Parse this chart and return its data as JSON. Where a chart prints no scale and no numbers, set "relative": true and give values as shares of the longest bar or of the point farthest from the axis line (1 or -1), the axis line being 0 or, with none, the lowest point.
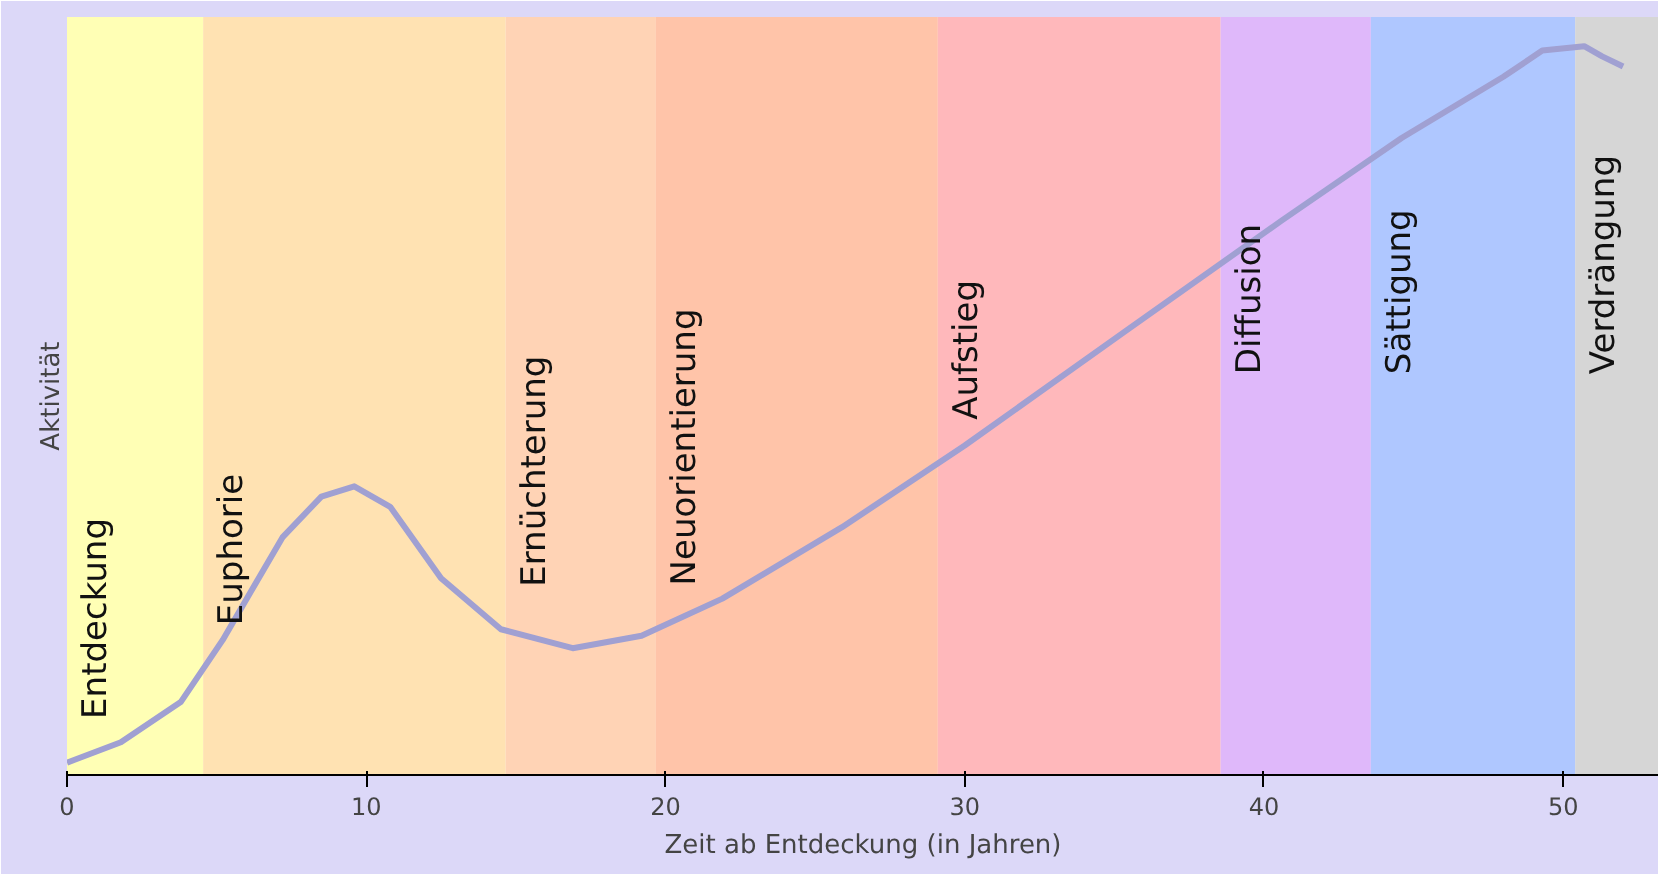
{
  "chart_data": {
    "type": "line",
    "xlabel": "Zeit ab Entdeckung (in Jahren)",
    "ylabel": "Aktivität",
    "relative": true,
    "grid": false,
    "xlim": [
      0,
      53.2
    ],
    "xticks": [
      0,
      10,
      20,
      30,
      40,
      50
    ],
    "x": [
      0,
      1.8,
      3.8,
      5.2,
      7.2,
      8.5,
      9.6,
      10.8,
      12.5,
      14.5,
      16.9,
      19.2,
      21.9,
      25.9,
      30.0,
      35.3,
      40.6,
      44.6,
      48.0,
      49.3,
      50.7,
      51.3,
      52.0
    ],
    "series": [
      {
        "color": "#a0a0d2",
        "values": [
          0.017,
          0.045,
          0.1,
          0.185,
          0.326,
          0.382,
          0.396,
          0.368,
          0.27,
          0.2,
          0.174,
          0.191,
          0.242,
          0.34,
          0.452,
          0.607,
          0.761,
          0.874,
          0.958,
          0.994,
          1.0,
          0.986,
          0.972
        ]
      }
    ],
    "bands": [
      {
        "axis": "x",
        "from": 0,
        "to": 4.55,
        "label": "Entdeckung",
        "color": "#ffff9c"
      },
      {
        "axis": "x",
        "from": 4.55,
        "to": 14.66,
        "label": "Euphorie",
        "color": "#ffd898"
      },
      {
        "axis": "x",
        "from": 14.66,
        "to": 19.68,
        "label": "Ernüchterung",
        "color": "#ffc49c"
      },
      {
        "axis": "x",
        "from": 19.68,
        "to": 29.1,
        "label": "Neuorientierung",
        "color": "#ffb08c"
      },
      {
        "axis": "x",
        "from": 29.1,
        "to": 38.55,
        "label": "Aufstieg",
        "color": "#ffa0a4"
      },
      {
        "axis": "x",
        "from": 38.55,
        "to": 43.57,
        "label": "Diffusion",
        "color": "#d4a0f8"
      },
      {
        "axis": "x",
        "from": 43.57,
        "to": 50.4,
        "label": "Sättigung",
        "color": "#94b4ff"
      },
      {
        "axis": "x",
        "from": 50.4,
        "to": 53.2,
        "label": "Verdrängung",
        "color": "#c8c8c8"
      }
    ]
  }
}
